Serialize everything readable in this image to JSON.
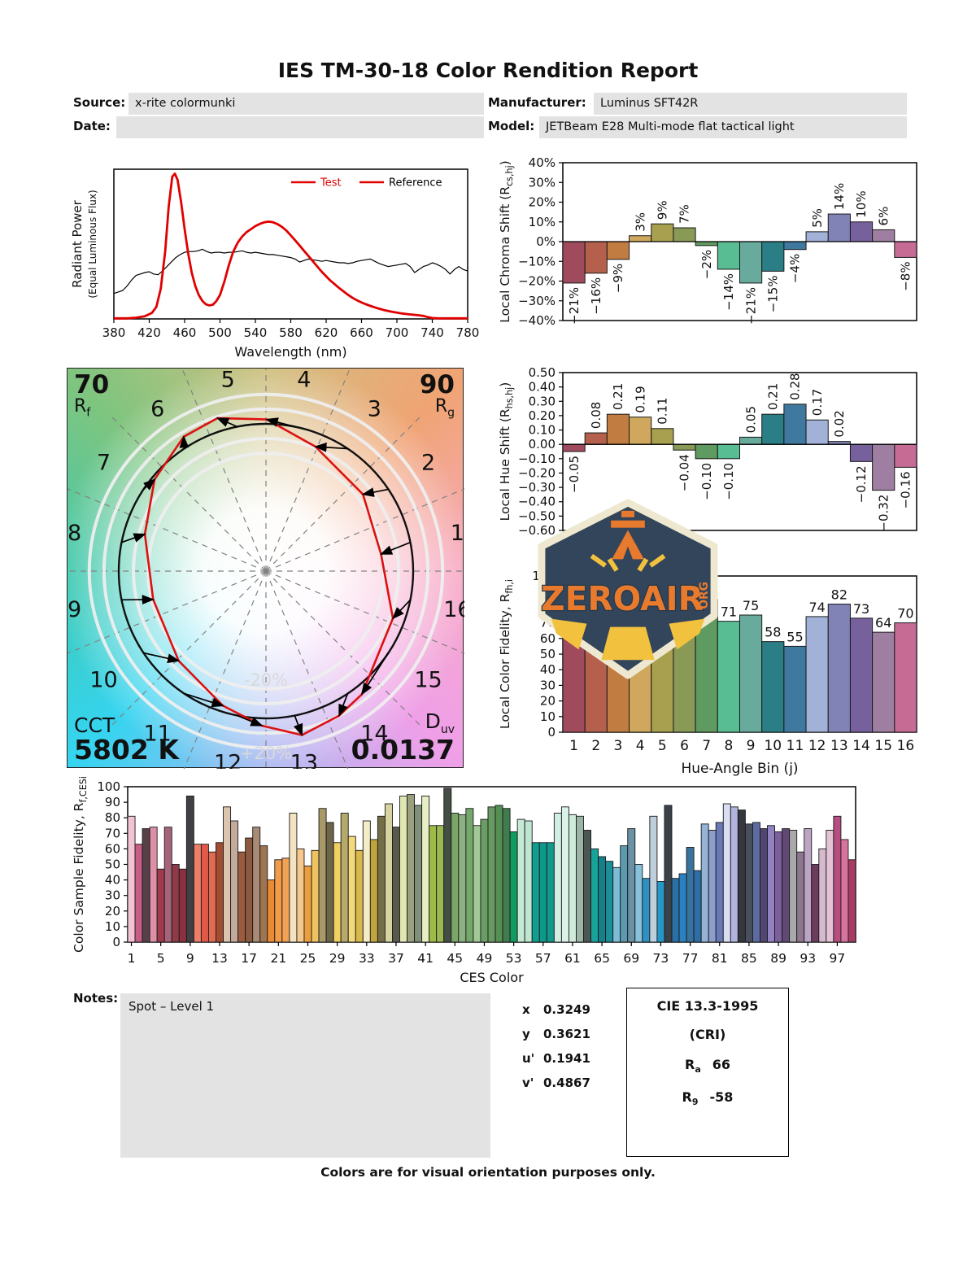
{
  "header": {
    "title": "IES TM-30-18 Color Rendition Report",
    "source_label": "Source:",
    "source_value": "x-rite colormunki",
    "date_label": "Date:",
    "date_value": "",
    "manufacturer_label": "Manufacturer:",
    "manufacturer_value": "Luminus SFT42R",
    "model_label": "Model:",
    "model_value": "JETBeam E28 Multi-mode flat tactical light"
  },
  "logo": {
    "word": "ZEROAIR",
    "org": "ORG"
  },
  "cvg": {
    "rf_value": "70",
    "rf_sym": "R",
    "rf_sub": "f",
    "rg_value": "90",
    "rg_sym": "R",
    "rg_sub": "g",
    "cct_label": "CCT",
    "cct_value": "5802 K",
    "duv_sym": "D",
    "duv_sub": "uv",
    "duv_value": "0.0137",
    "inner_ring_label": "-20%",
    "outer_ring_label": "+20%"
  },
  "bin_colors": [
    "#a04a5e",
    "#b4604c",
    "#c17c42",
    "#cfa85e",
    "#a8a04e",
    "#889a55",
    "#5f9a60",
    "#58bd92",
    "#68aa9b",
    "#2b7e86",
    "#40799f",
    "#a2b1d8",
    "#8183b7",
    "#77619c",
    "#9f7fa1",
    "#c56b94"
  ],
  "chart_data": [
    {
      "id": "spd",
      "type": "line",
      "xlabel": "Wavelength (nm)",
      "ylabel": "Radiant Power",
      "ylabel2": "(Equal Luminous Flux)",
      "xlim": [
        380,
        780
      ],
      "xticks": [
        380,
        420,
        460,
        500,
        540,
        580,
        620,
        660,
        700,
        740,
        780
      ],
      "legend": [
        "Test",
        "Reference"
      ],
      "legend_colors": [
        "#e00000",
        "#000000"
      ],
      "series": [
        {
          "name": "Test",
          "color": "#e00000",
          "width": 2.8,
          "points": [
            [
              380,
              0.004
            ],
            [
              395,
              0.004
            ],
            [
              405,
              0.008
            ],
            [
              415,
              0.018
            ],
            [
              423,
              0.04
            ],
            [
              428,
              0.08
            ],
            [
              433,
              0.2
            ],
            [
              438,
              0.45
            ],
            [
              442,
              0.75
            ],
            [
              446,
              0.95
            ],
            [
              449,
              0.97
            ],
            [
              452,
              0.93
            ],
            [
              456,
              0.78
            ],
            [
              460,
              0.6
            ],
            [
              464,
              0.44
            ],
            [
              468,
              0.31
            ],
            [
              472,
              0.22
            ],
            [
              476,
              0.16
            ],
            [
              480,
              0.12
            ],
            [
              484,
              0.098
            ],
            [
              488,
              0.09
            ],
            [
              492,
              0.095
            ],
            [
              496,
              0.12
            ],
            [
              500,
              0.16
            ],
            [
              505,
              0.25
            ],
            [
              510,
              0.36
            ],
            [
              515,
              0.45
            ],
            [
              520,
              0.51
            ],
            [
              525,
              0.55
            ],
            [
              530,
              0.58
            ],
            [
              535,
              0.6
            ],
            [
              540,
              0.62
            ],
            [
              545,
              0.635
            ],
            [
              550,
              0.645
            ],
            [
              555,
              0.65
            ],
            [
              560,
              0.645
            ],
            [
              565,
              0.633
            ],
            [
              570,
              0.615
            ],
            [
              575,
              0.59
            ],
            [
              580,
              0.558
            ],
            [
              585,
              0.525
            ],
            [
              590,
              0.49
            ],
            [
              595,
              0.455
            ],
            [
              600,
              0.42
            ],
            [
              605,
              0.385
            ],
            [
              610,
              0.35
            ],
            [
              615,
              0.315
            ],
            [
              620,
              0.285
            ],
            [
              625,
              0.255
            ],
            [
              630,
              0.23
            ],
            [
              635,
              0.205
            ],
            [
              640,
              0.182
            ],
            [
              645,
              0.16
            ],
            [
              650,
              0.14
            ],
            [
              655,
              0.124
            ],
            [
              660,
              0.11
            ],
            [
              665,
              0.098
            ],
            [
              670,
              0.087
            ],
            [
              675,
              0.077
            ],
            [
              680,
              0.068
            ],
            [
              685,
              0.06
            ],
            [
              690,
              0.053
            ],
            [
              695,
              0.047
            ],
            [
              700,
              0.042
            ],
            [
              705,
              0.037
            ],
            [
              710,
              0.033
            ],
            [
              715,
              0.03
            ],
            [
              720,
              0.027
            ],
            [
              725,
              0.024
            ],
            [
              730,
              0.02
            ],
            [
              735,
              0.012
            ],
            [
              740,
              0.006
            ],
            [
              748,
              0.004
            ],
            [
              760,
              0.004
            ],
            [
              780,
              0.004
            ]
          ]
        },
        {
          "name": "Reference",
          "color": "#000000",
          "width": 1.2,
          "points": [
            [
              380,
              0.17
            ],
            [
              385,
              0.18
            ],
            [
              390,
              0.19
            ],
            [
              395,
              0.22
            ],
            [
              400,
              0.26
            ],
            [
              405,
              0.29
            ],
            [
              410,
              0.3
            ],
            [
              415,
              0.31
            ],
            [
              420,
              0.315
            ],
            [
              425,
              0.3
            ],
            [
              430,
              0.295
            ],
            [
              435,
              0.32
            ],
            [
              440,
              0.35
            ],
            [
              445,
              0.38
            ],
            [
              450,
              0.41
            ],
            [
              455,
              0.43
            ],
            [
              460,
              0.445
            ],
            [
              465,
              0.45
            ],
            [
              470,
              0.45
            ],
            [
              475,
              0.455
            ],
            [
              480,
              0.465
            ],
            [
              485,
              0.45
            ],
            [
              490,
              0.44
            ],
            [
              495,
              0.445
            ],
            [
              500,
              0.445
            ],
            [
              505,
              0.44
            ],
            [
              510,
              0.445
            ],
            [
              515,
              0.445
            ],
            [
              520,
              0.45
            ],
            [
              525,
              0.455
            ],
            [
              530,
              0.445
            ],
            [
              535,
              0.44
            ],
            [
              540,
              0.445
            ],
            [
              545,
              0.44
            ],
            [
              550,
              0.435
            ],
            [
              555,
              0.43
            ],
            [
              560,
              0.43
            ],
            [
              565,
              0.425
            ],
            [
              570,
              0.42
            ],
            [
              575,
              0.415
            ],
            [
              580,
              0.41
            ],
            [
              585,
              0.4
            ],
            [
              590,
              0.38
            ],
            [
              595,
              0.39
            ],
            [
              600,
              0.4
            ],
            [
              605,
              0.395
            ],
            [
              610,
              0.39
            ],
            [
              615,
              0.385
            ],
            [
              620,
              0.39
            ],
            [
              625,
              0.385
            ],
            [
              630,
              0.38
            ],
            [
              635,
              0.375
            ],
            [
              640,
              0.375
            ],
            [
              645,
              0.37
            ],
            [
              650,
              0.375
            ],
            [
              655,
              0.385
            ],
            [
              660,
              0.39
            ],
            [
              665,
              0.395
            ],
            [
              670,
              0.4
            ],
            [
              675,
              0.385
            ],
            [
              680,
              0.37
            ],
            [
              685,
              0.36
            ],
            [
              690,
              0.35
            ],
            [
              695,
              0.355
            ],
            [
              700,
              0.36
            ],
            [
              705,
              0.365
            ],
            [
              710,
              0.37
            ],
            [
              715,
              0.35
            ],
            [
              720,
              0.31
            ],
            [
              725,
              0.33
            ],
            [
              730,
              0.35
            ],
            [
              735,
              0.36
            ],
            [
              740,
              0.375
            ],
            [
              745,
              0.365
            ],
            [
              750,
              0.35
            ],
            [
              755,
              0.33
            ],
            [
              760,
              0.3
            ],
            [
              765,
              0.33
            ],
            [
              770,
              0.35
            ],
            [
              775,
              0.33
            ],
            [
              780,
              0.32
            ]
          ]
        }
      ]
    },
    {
      "id": "local_chroma_shift",
      "type": "bar",
      "ylabel_main": "Local Chroma Shift (R",
      "ylabel_sub": "cs,hj",
      "ylabel_end": ")",
      "categories": [
        1,
        2,
        3,
        4,
        5,
        6,
        7,
        8,
        9,
        10,
        11,
        12,
        13,
        14,
        15,
        16
      ],
      "values": [
        -21,
        -16,
        -9,
        3,
        9,
        7,
        -2,
        -14,
        -21,
        -15,
        -4,
        5,
        14,
        10,
        6,
        -8
      ],
      "labels": [
        "−21%",
        "−16%",
        "−9%",
        "3%",
        "9%",
        "7%",
        "−2%",
        "−14%",
        "−21%",
        "−15%",
        "−4%",
        "5%",
        "14%",
        "10%",
        "6%",
        "−8%"
      ],
      "ylim": [
        -40,
        40
      ],
      "ytick_step": 10,
      "ytick_suffix": "%"
    },
    {
      "id": "local_hue_shift",
      "type": "bar",
      "ylabel_main": "Local Hue Shift (R",
      "ylabel_sub": "hs,hj",
      "ylabel_end": ")",
      "categories": [
        1,
        2,
        3,
        4,
        5,
        6,
        7,
        8,
        9,
        10,
        11,
        12,
        13,
        14,
        15,
        16
      ],
      "values": [
        -0.05,
        0.08,
        0.21,
        0.19,
        0.11,
        -0.04,
        -0.1,
        -0.1,
        0.05,
        0.21,
        0.28,
        0.17,
        0.02,
        -0.12,
        -0.32,
        -0.16
      ],
      "labels": [
        "−0.05",
        "0.08",
        "0.21",
        "0.19",
        "0.11",
        "−0.04",
        "−0.10",
        "−0.10",
        "0.05",
        "0.21",
        "0.28",
        "0.17",
        "0.02",
        "−0.12",
        "−0.32",
        "−0.16"
      ],
      "ylim": [
        -0.6,
        0.5
      ],
      "ytick_step": 0.1
    },
    {
      "id": "local_color_fidelity",
      "type": "bar",
      "ylabel_main": "Local Color Fidelity, R",
      "ylabel_sub": "fh,i",
      "ylabel_end": "",
      "xlabel": "Hue-Angle Bin (j)",
      "categories": [
        1,
        2,
        3,
        4,
        5,
        6,
        7,
        8,
        9,
        10,
        11,
        12,
        13,
        14,
        15,
        16
      ],
      "values": [
        61,
        72,
        61,
        70,
        76,
        85,
        85,
        71,
        75,
        58,
        55,
        74,
        82,
        73,
        64,
        70
      ],
      "ylim": [
        0,
        100
      ],
      "ytick_step": 10
    },
    {
      "id": "ces_fidelity",
      "type": "bar",
      "ylabel_main": "Color Sample Fidelity, R",
      "ylabel_sub": "f,CESi",
      "ylabel_end": "",
      "xlabel": "CES Color",
      "xticks": [
        1,
        5,
        9,
        13,
        17,
        21,
        25,
        29,
        33,
        37,
        41,
        45,
        49,
        53,
        57,
        61,
        65,
        69,
        73,
        77,
        81,
        85,
        89,
        93,
        97
      ],
      "values": [
        81,
        63,
        73,
        74,
        47,
        74,
        50,
        47,
        94,
        63,
        63,
        58,
        64,
        87,
        78,
        58,
        67,
        74,
        62,
        40,
        53,
        54,
        83,
        60,
        49,
        59,
        86,
        77,
        64,
        83,
        68,
        59,
        78,
        66,
        81,
        89,
        74,
        94,
        95,
        88,
        94,
        75,
        75,
        99,
        83,
        82,
        86,
        75,
        79,
        87,
        88,
        86,
        71,
        79,
        78,
        64,
        64,
        64,
        83,
        87,
        82,
        81,
        72,
        60,
        55,
        52,
        48,
        62,
        73,
        50,
        41,
        81,
        39,
        88,
        41,
        44,
        61,
        46,
        76,
        72,
        77,
        89,
        87,
        85,
        76,
        77,
        73,
        75,
        71,
        73,
        72,
        58,
        73,
        50,
        60,
        72,
        81,
        66,
        53
      ],
      "colors": [
        "#f2c3d2",
        "#c75c85",
        "#574149",
        "#dc8fa6",
        "#a03a4c",
        "#a5647a",
        "#8f3a49",
        "#8c3040",
        "#403f44",
        "#ee7e68",
        "#e05a4a",
        "#e16a52",
        "#a34c32",
        "#dcc5ae",
        "#c4aa9a",
        "#9a5b3e",
        "#8c5a40",
        "#a98a74",
        "#9e7550",
        "#e98a34",
        "#f29b49",
        "#f2a254",
        "#f3e3c2",
        "#f6c88e",
        "#eb9e40",
        "#eec25e",
        "#a89a68",
        "#6e6448",
        "#f0d060",
        "#b5a96c",
        "#f1d97c",
        "#d9b84c",
        "#f4ecc6",
        "#c2a43c",
        "#746e48",
        "#d7d4a2",
        "#585a4c",
        "#e0e7b2",
        "#9aa07e",
        "#7e9079",
        "#e7eec4",
        "#9dbb48",
        "#9cb852",
        "#454e44",
        "#7aa768",
        "#8cb284",
        "#74a86c",
        "#a2c896",
        "#6a9e64",
        "#679a62",
        "#578e54",
        "#417c4e",
        "#0f9b62",
        "#c6e9d6",
        "#c0e6d2",
        "#109e90",
        "#0e988a",
        "#10998c",
        "#d2eee2",
        "#daf2e9",
        "#cfe9da",
        "#9cb4a6",
        "#4c5652",
        "#16a49a",
        "#13808a",
        "#1a8f98",
        "#7cbcd4",
        "#5c9ab0",
        "#6b91a5",
        "#87c2dc",
        "#2f90c3",
        "#bccfdb",
        "#2697c9",
        "#3a4148",
        "#2a70a6",
        "#2b80c2",
        "#39729c",
        "#2e6ea6",
        "#94b3d6",
        "#8c9dca",
        "#6979b6",
        "#dadef2",
        "#b1b3de",
        "#35363e",
        "#4a4f5e",
        "#5d6ba0",
        "#504573",
        "#9282c1",
        "#7b609c",
        "#604874",
        "#a9a9aa",
        "#8e7691",
        "#bba4c4",
        "#6c3b5d",
        "#d5b9cd",
        "#e4c3d7",
        "#b74e7f",
        "#d7749d",
        "#a73b63"
      ],
      "ylim": [
        0,
        100
      ],
      "ytick_step": 10
    }
  ],
  "notes": {
    "label": "Notes:",
    "text": "Spot – Level 1"
  },
  "chromaticity": [
    {
      "label": "x",
      "value": "0.3249"
    },
    {
      "label": "y",
      "value": "0.3621"
    },
    {
      "label": "u'",
      "value": "0.1941"
    },
    {
      "label": "v'",
      "value": "0.4867"
    }
  ],
  "cie_box": {
    "title": "CIE 13.3-1995",
    "subtitle": "(CRI)",
    "rows": [
      {
        "label": "R",
        "sub": "a",
        "value": "66"
      },
      {
        "label": "R",
        "sub": "9",
        "value": "-58"
      }
    ]
  },
  "footer": "Colors are for visual orientation purposes only."
}
